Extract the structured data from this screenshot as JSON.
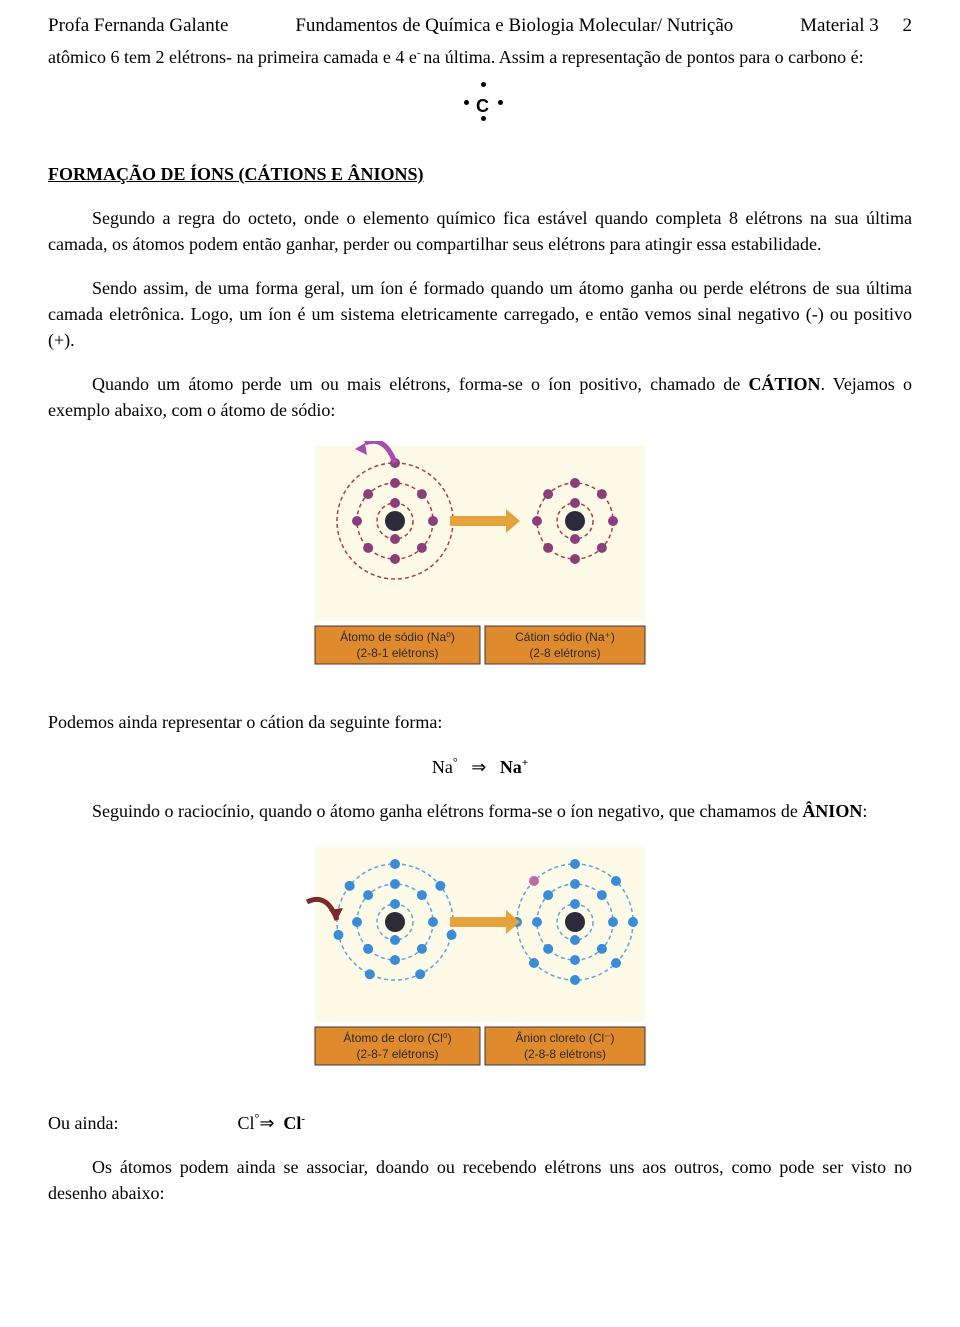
{
  "header": {
    "left": "Profa Fernanda Galante",
    "center": "Fundamentos de Química e Biologia Molecular/ Nutrição",
    "right_label": "Material 3",
    "page_no": "2"
  },
  "intro": {
    "line1_a": "atômico 6 tem 2 elétrons- na primeira camada e 4 e",
    "line1_sup": "- ",
    "line1_b": "na última. Assim a representação de",
    "line2": "pontos para o carbono é:"
  },
  "lewis": {
    "symbol": "C"
  },
  "section_heading": "FORMAÇÃO DE ÍONS (CÁTIONS E ÂNIONS)",
  "p1": "Segundo a regra do octeto, onde o elemento químico fica estável quando completa 8 elétrons na sua última camada, os átomos podem então ganhar, perder ou compartilhar seus elétrons para atingir essa estabilidade.",
  "p2": "Sendo assim, de uma forma geral, um íon é formado quando um átomo ganha ou perde elétrons de sua última camada eletrônica. Logo, um íon é um sistema eletricamente carregado, e então vemos sinal negativo (-) ou positivo (+).",
  "p3_a": "Quando um átomo perde um ou mais elétrons, forma-se o íon positivo, chamado de ",
  "p3_bold": "CÁTION",
  "p3_b": ". Vejamos o exemplo abaixo, com o átomo de sódio:",
  "sodium_fig": {
    "bg_outer": "#fdfae8",
    "shell_color": "#b23a48",
    "electron_color": "#8a3f7a",
    "nucleus_color": "#2b2b3a",
    "arrow_color": "#e6a23c",
    "arrow_curve": "#a64db3",
    "label_bg": "#e08a2e",
    "label_border": "#3a3a3a",
    "left": {
      "shells": [
        2,
        8,
        1
      ],
      "title": "Átomo de sódio (Na⁰)",
      "sub": "(2-8-1 elétrons)"
    },
    "right": {
      "shells": [
        2,
        8
      ],
      "title": "Cátion sódio (Na⁺)",
      "sub": "(2-8 elétrons)"
    }
  },
  "p4": "Podemos ainda representar o cátion da seguinte forma:",
  "eq1": {
    "lhs": "Na",
    "lhs_sup": "°",
    "arrow": "⇒",
    "rhs": "Na",
    "rhs_sup": "+"
  },
  "p5_a": "Seguindo o raciocínio, quando o átomo ganha elétrons forma-se o íon negativo, que chamamos de ",
  "p5_bold": "ÂNION",
  "p5_b": ":",
  "chlorine_fig": {
    "bg_outer": "#fdfae8",
    "shell_color": "#5aa7e0",
    "electron_color": "#3a8cd6",
    "nucleus_color": "#2b2b3a",
    "extra_electron_color": "#c06aa8",
    "arrow_color": "#e6a23c",
    "arrow_curve": "#7a2a2a",
    "label_bg": "#e08a2e",
    "label_border": "#3a3a3a",
    "left": {
      "shells": [
        2,
        8,
        7
      ],
      "title": "Átomo de cloro (Cl⁰)",
      "sub": "(2-8-7 elétrons)"
    },
    "right": {
      "shells": [
        2,
        8,
        8
      ],
      "title": "Ânion cloreto (Cl⁻)",
      "sub": "(2-8-8 elétrons)"
    }
  },
  "p6_label": "Ou ainda:",
  "eq2": {
    "lhs": "Cl",
    "lhs_sup": "°",
    "arrow": "⇒",
    "rhs": "Cl",
    "rhs_sup": "-"
  },
  "p7": "Os átomos podem ainda se associar, doando ou recebendo elétrons uns aos outros, como pode ser visto no desenho abaixo:"
}
